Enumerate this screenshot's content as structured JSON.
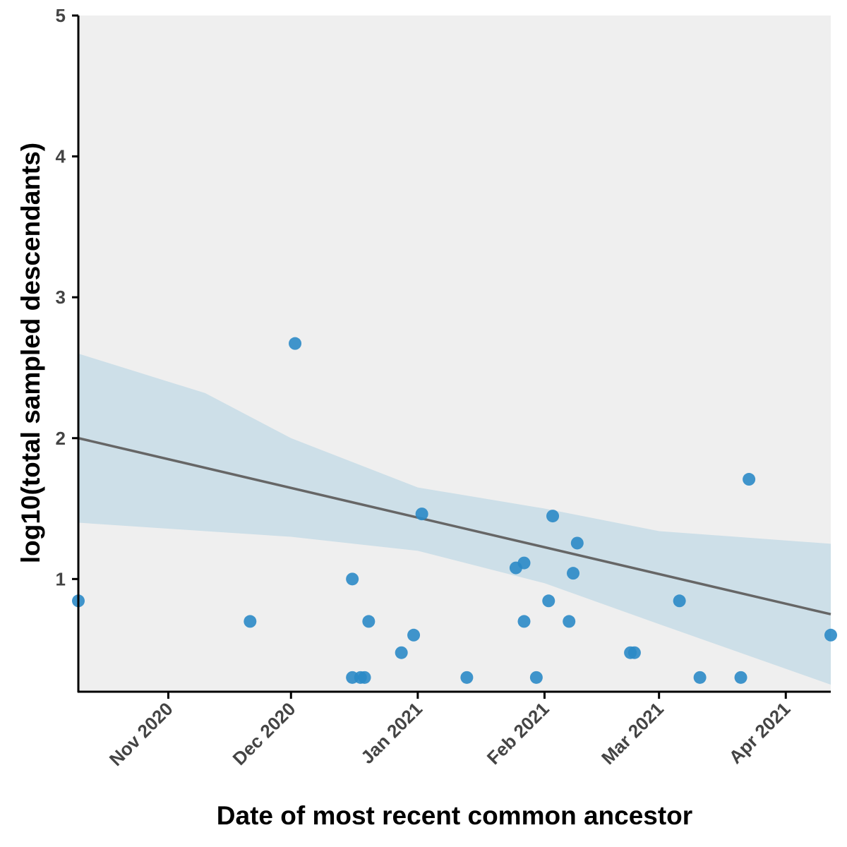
{
  "chart_data": {
    "type": "scatter",
    "title": "",
    "xlabel": "Date of most recent common ancestor",
    "ylabel": "log10(total sampled descendants)",
    "xlim": [
      "2020-10-10",
      "2021-04-12"
    ],
    "ylim": [
      0.2,
      5
    ],
    "x_ticks": [
      {
        "date": "2020-11-01",
        "label": "Nov 2020"
      },
      {
        "date": "2020-12-01",
        "label": "Dec 2020"
      },
      {
        "date": "2021-01-01",
        "label": "Jan 2021"
      },
      {
        "date": "2021-02-01",
        "label": "Feb 2021"
      },
      {
        "date": "2021-03-01",
        "label": "Mar 2021"
      },
      {
        "date": "2021-04-01",
        "label": "Apr 2021"
      }
    ],
    "y_ticks": [
      1,
      2,
      3,
      4,
      5
    ],
    "grid": false,
    "legend": "none",
    "colors": {
      "panel": "#efefef",
      "points": "#2b8ac6",
      "fit_line": "#666666",
      "ribbon": "#cddfe8",
      "axis": "#000000"
    },
    "series": [
      {
        "values": [
          {
            "x": "2020-10-10",
            "y": 0.845
          },
          {
            "x": "2020-11-21",
            "y": 0.699
          },
          {
            "x": "2020-12-02",
            "y": 2.672
          },
          {
            "x": "2020-12-16",
            "y": 1.0
          },
          {
            "x": "2020-12-16",
            "y": 0.301
          },
          {
            "x": "2020-12-18",
            "y": 0.301
          },
          {
            "x": "2020-12-19",
            "y": 0.301
          },
          {
            "x": "2020-12-20",
            "y": 0.699
          },
          {
            "x": "2020-12-28",
            "y": 0.477
          },
          {
            "x": "2020-12-31",
            "y": 0.602
          },
          {
            "x": "2021-01-02",
            "y": 1.462
          },
          {
            "x": "2021-01-13",
            "y": 0.301
          },
          {
            "x": "2021-01-25",
            "y": 1.079
          },
          {
            "x": "2021-01-27",
            "y": 1.114
          },
          {
            "x": "2021-01-27",
            "y": 0.699
          },
          {
            "x": "2021-01-30",
            "y": 0.301
          },
          {
            "x": "2021-02-02",
            "y": 0.845
          },
          {
            "x": "2021-02-03",
            "y": 1.447
          },
          {
            "x": "2021-02-07",
            "y": 0.699
          },
          {
            "x": "2021-02-08",
            "y": 1.041
          },
          {
            "x": "2021-02-09",
            "y": 1.255
          },
          {
            "x": "2021-02-22",
            "y": 0.477
          },
          {
            "x": "2021-02-23",
            "y": 0.477
          },
          {
            "x": "2021-03-06",
            "y": 0.845
          },
          {
            "x": "2021-03-11",
            "y": 0.301
          },
          {
            "x": "2021-03-21",
            "y": 0.301
          },
          {
            "x": "2021-03-23",
            "y": 1.708
          },
          {
            "x": "2021-04-12",
            "y": 0.602
          }
        ]
      }
    ],
    "fit_line": [
      {
        "x": "2020-10-10",
        "y": 2.0
      },
      {
        "x": "2021-04-12",
        "y": 0.75
      }
    ],
    "confidence_band": [
      {
        "x": "2020-10-10",
        "lower": 1.4,
        "upper": 2.6
      },
      {
        "x": "2020-11-10",
        "lower": 1.34,
        "upper": 2.32
      },
      {
        "x": "2020-12-01",
        "lower": 1.3,
        "upper": 2.0
      },
      {
        "x": "2021-01-01",
        "lower": 1.2,
        "upper": 1.65
      },
      {
        "x": "2021-02-01",
        "lower": 0.97,
        "upper": 1.5
      },
      {
        "x": "2021-03-01",
        "lower": 0.68,
        "upper": 1.34
      },
      {
        "x": "2021-04-12",
        "lower": 0.25,
        "upper": 1.25
      }
    ]
  }
}
